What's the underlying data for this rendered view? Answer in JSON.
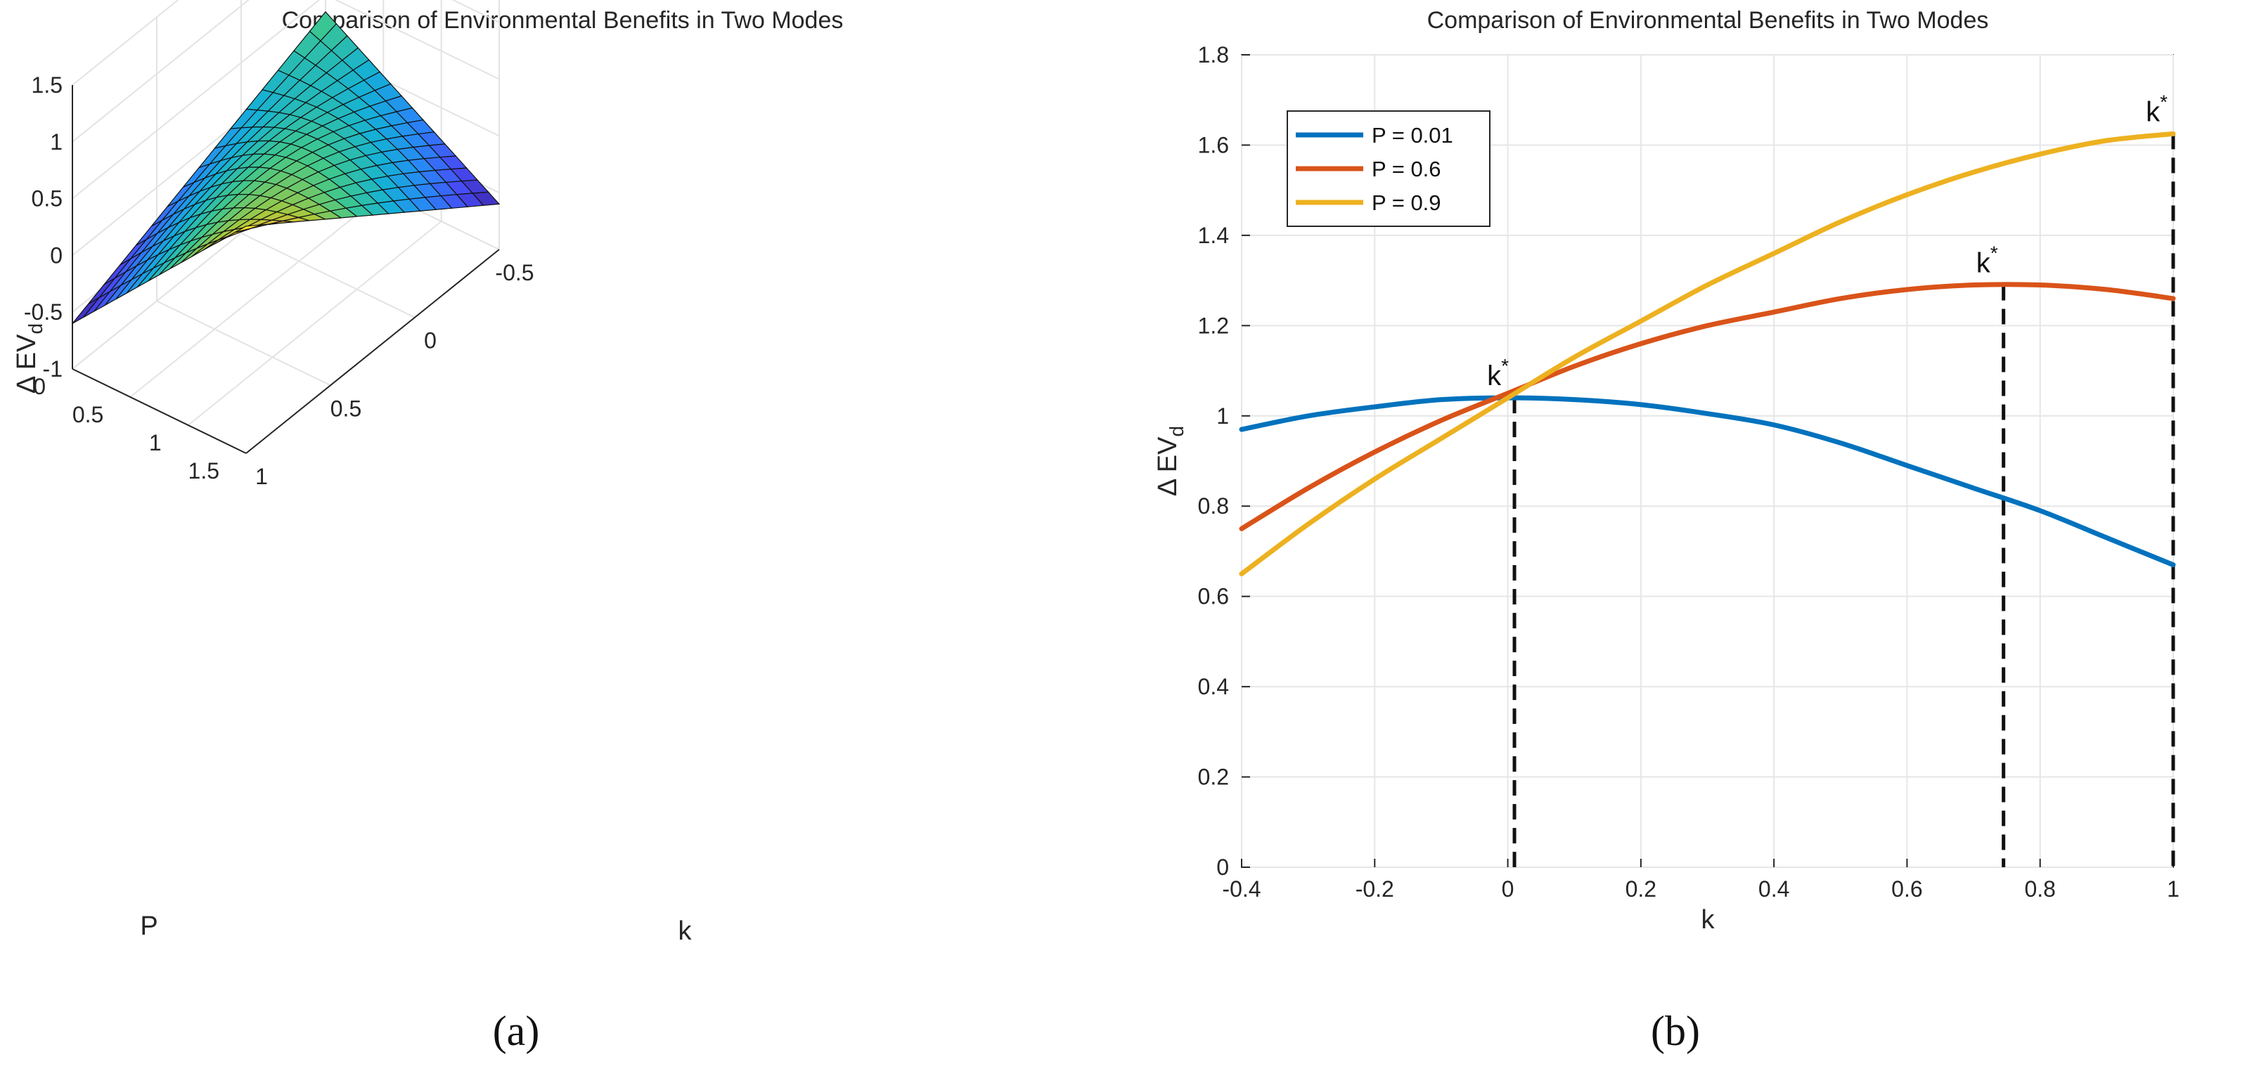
{
  "chart_data": [
    {
      "type": "surface3d",
      "panel_caption": "(a)",
      "title": "Comparison of Environmental Benefits in Two Modes",
      "xlabel": "k",
      "ylabel": "P",
      "zlabel": "Δ EV",
      "zlabel_sub": "d",
      "xlim": [
        -0.5,
        1
      ],
      "ylim": [
        0,
        1.5
      ],
      "zlim": [
        -1,
        1.5
      ],
      "xticks": [
        "1",
        "0.5",
        "0",
        "-0.5"
      ],
      "yticks": [
        "0",
        "0.5",
        "1",
        "1.5"
      ],
      "zticks": [
        "-1",
        "-0.5",
        "0",
        "0.5",
        "1",
        "1.5"
      ],
      "surface_range": {
        "k": [
          -0.5,
          1
        ],
        "P": [
          0,
          1.5
        ]
      },
      "corner_values": [
        {
          "k": 1,
          "P": 0,
          "z": -0.6
        },
        {
          "k": -0.5,
          "P": 0,
          "z": 0.35
        },
        {
          "k": 1,
          "P": 1.5,
          "z": 1.0
        },
        {
          "k": -0.5,
          "P": 1.5,
          "z": -0.6
        }
      ],
      "colormap": "parula",
      "grid": true
    },
    {
      "type": "line",
      "panel_caption": "(b)",
      "title": "Comparison of Environmental Benefits in Two Modes",
      "xlabel": "k",
      "ylabel": "Δ EV",
      "ylabel_sub": "d",
      "xlim": [
        -0.4,
        1
      ],
      "ylim": [
        0,
        1.8
      ],
      "xticks": [
        -0.4,
        -0.2,
        0,
        0.2,
        0.4,
        0.6,
        0.8,
        1
      ],
      "yticks": [
        0,
        0.2,
        0.4,
        0.6,
        0.8,
        1,
        1.2,
        1.4,
        1.6,
        1.8
      ],
      "x": [
        -0.4,
        -0.3,
        -0.2,
        -0.1,
        0,
        0.1,
        0.2,
        0.3,
        0.4,
        0.5,
        0.6,
        0.7,
        0.8,
        0.9,
        1
      ],
      "series": [
        {
          "name": "P = 0.01",
          "color": "#0072BD",
          "values": [
            0.97,
            1.0,
            1.02,
            1.036,
            1.04,
            1.036,
            1.025,
            1.005,
            0.98,
            0.94,
            0.89,
            0.84,
            0.79,
            0.73,
            0.67
          ]
        },
        {
          "name": "P = 0.6",
          "color": "#D95319",
          "values": [
            0.75,
            0.84,
            0.92,
            0.99,
            1.05,
            1.11,
            1.16,
            1.2,
            1.23,
            1.26,
            1.28,
            1.29,
            1.29,
            1.28,
            1.26
          ]
        },
        {
          "name": "P = 0.9",
          "color": "#EDB120",
          "values": [
            0.65,
            0.76,
            0.86,
            0.95,
            1.04,
            1.13,
            1.21,
            1.29,
            1.36,
            1.43,
            1.49,
            1.54,
            1.58,
            1.61,
            1.625
          ]
        }
      ],
      "annotations": [
        {
          "label": "k",
          "sup": "*",
          "x": 0.01,
          "y": 1.04
        },
        {
          "label": "k",
          "sup": "*",
          "x": 0.745,
          "y": 1.29
        },
        {
          "label": "k",
          "sup": "*",
          "x": 1.0,
          "y": 1.625
        }
      ],
      "legend": "top-left",
      "grid": true
    }
  ]
}
